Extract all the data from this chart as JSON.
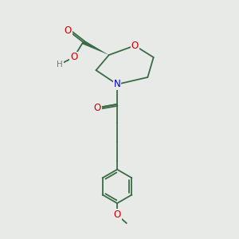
{
  "bg_color": "#e8eae8",
  "bond_color": "#3a6b45",
  "atom_colors": {
    "O": "#cc0000",
    "N": "#0000cc",
    "H": "#777777"
  },
  "bond_width": 1.3,
  "font_size": 8.5
}
